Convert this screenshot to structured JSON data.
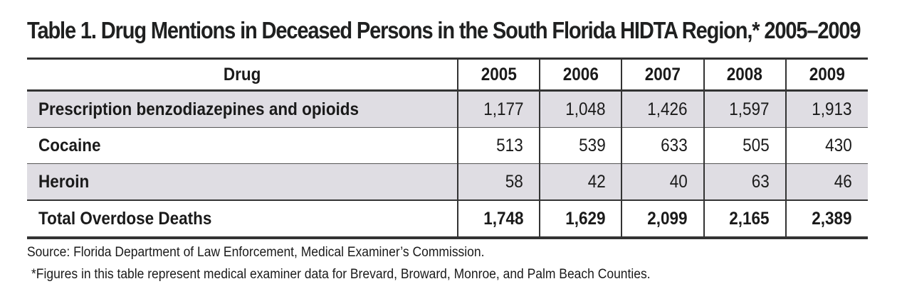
{
  "title": "Table 1. Drug Mentions in Deceased Persons in the South Florida HIDTA Region,* 2005–2009",
  "table": {
    "headers": [
      "Drug",
      "2005",
      "2006",
      "2007",
      "2008",
      "2009"
    ],
    "rows": [
      {
        "label": "Prescription benzodiazepines and opioids",
        "values": [
          "1,177",
          "1,048",
          "1,426",
          "1,597",
          "1,913"
        ]
      },
      {
        "label": "Cocaine",
        "values": [
          "513",
          "539",
          "633",
          "505",
          "430"
        ]
      },
      {
        "label": "Heroin",
        "values": [
          "58",
          "42",
          "40",
          "63",
          "46"
        ]
      }
    ],
    "total": {
      "label": "Total Overdose Deaths",
      "values": [
        "1,748",
        "1,629",
        "2,099",
        "2,165",
        "2,389"
      ]
    }
  },
  "source": "Source: Florida Department of Law Enforcement, Medical Examiner’s Commission.",
  "footnote": "*Figures in this table represent medical examiner data for Brevard, Broward, Monroe, and Palm Beach Counties."
}
